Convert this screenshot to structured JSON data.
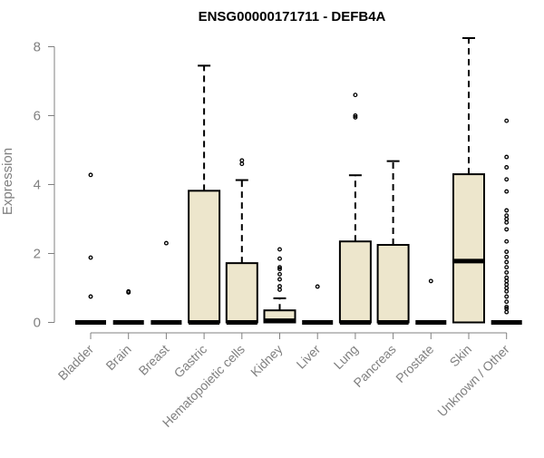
{
  "chart_data": {
    "type": "box",
    "title": "ENSG00000171711 - DEFB4A",
    "xlabel": "",
    "ylabel": "Expression",
    "ylim": [
      0,
      8
    ],
    "y_ticks": [
      0,
      2,
      4,
      6,
      8
    ],
    "grid": false,
    "legend": "none",
    "colors": {
      "box_fill": "#ede6cc",
      "box_stroke": "#000000",
      "axis": "#808080",
      "tick_text": "#808080",
      "title": "#000000"
    },
    "categories": [
      "Bladder",
      "Brain",
      "Breast",
      "Gastric",
      "Hematopoietic cells",
      "Kidney",
      "Liver",
      "Lung",
      "Pancreas",
      "Prostate",
      "Skin",
      "Unknown / Other"
    ],
    "boxes": [
      {
        "category": "Bladder",
        "q1": 0,
        "median": 0,
        "q3": 0,
        "whisker_low": 0,
        "whisker_high": 0,
        "outliers": [
          0.75,
          1.88,
          4.28
        ]
      },
      {
        "category": "Brain",
        "q1": 0,
        "median": 0,
        "q3": 0,
        "whisker_low": 0,
        "whisker_high": 0,
        "outliers": [
          0.87,
          0.9
        ]
      },
      {
        "category": "Breast",
        "q1": 0,
        "median": 0,
        "q3": 0,
        "whisker_low": 0,
        "whisker_high": 0,
        "outliers": [
          2.3
        ]
      },
      {
        "category": "Gastric",
        "q1": 0,
        "median": 0,
        "q3": 3.82,
        "whisker_low": 0,
        "whisker_high": 7.45,
        "outliers": []
      },
      {
        "category": "Hematopoietic cells",
        "q1": 0,
        "median": 0,
        "q3": 1.72,
        "whisker_low": 0,
        "whisker_high": 4.13,
        "outliers": [
          4.6,
          4.7
        ]
      },
      {
        "category": "Kidney",
        "q1": 0,
        "median": 0.05,
        "q3": 0.35,
        "whisker_low": 0,
        "whisker_high": 0.7,
        "outliers": [
          0.95,
          1.05,
          1.25,
          1.4,
          1.55,
          1.6,
          1.85,
          2.12
        ]
      },
      {
        "category": "Liver",
        "q1": 0,
        "median": 0,
        "q3": 0,
        "whisker_low": 0,
        "whisker_high": 0,
        "outliers": [
          1.04
        ]
      },
      {
        "category": "Lung",
        "q1": 0,
        "median": 0,
        "q3": 2.35,
        "whisker_low": 0,
        "whisker_high": 4.27,
        "outliers": [
          5.95,
          6.0,
          6.6
        ]
      },
      {
        "category": "Pancreas",
        "q1": 0,
        "median": 0,
        "q3": 2.25,
        "whisker_low": 0,
        "whisker_high": 4.68,
        "outliers": []
      },
      {
        "category": "Prostate",
        "q1": 0,
        "median": 0,
        "q3": 0,
        "whisker_low": 0,
        "whisker_high": 0,
        "outliers": [
          1.2
        ]
      },
      {
        "category": "Skin",
        "q1": 0,
        "median": 1.78,
        "q3": 4.3,
        "whisker_low": 0,
        "whisker_high": 8.25,
        "outliers": []
      },
      {
        "category": "Unknown / Other",
        "q1": 0,
        "median": 0,
        "q3": 0,
        "whisker_low": 0,
        "whisker_high": 0,
        "outliers": [
          0.3,
          0.4,
          0.45,
          0.6,
          0.75,
          0.9,
          1.0,
          1.1,
          1.2,
          1.3,
          1.45,
          1.6,
          1.75,
          1.9,
          2.05,
          2.35,
          2.7,
          2.9,
          3.0,
          3.1,
          3.25,
          3.8,
          4.15,
          4.5,
          4.8,
          5.85
        ]
      }
    ]
  }
}
